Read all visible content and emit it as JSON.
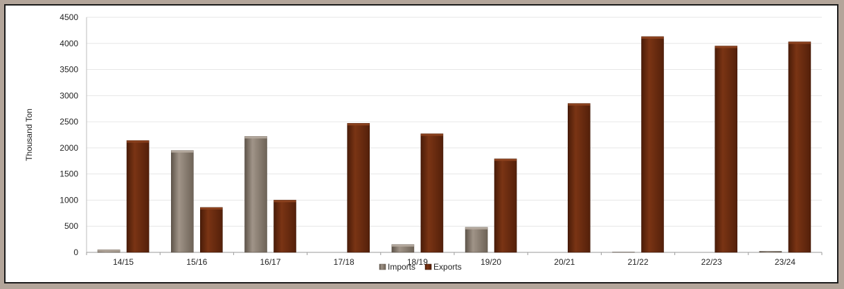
{
  "chart_data": {
    "type": "bar",
    "categories": [
      "14/15",
      "15/16",
      "16/17",
      "17/18",
      "18/19",
      "19/20",
      "20/21",
      "21/22",
      "22/23",
      "23/24"
    ],
    "series": [
      {
        "name": "Imports",
        "values": [
          50,
          1950,
          2220,
          0,
          150,
          480,
          0,
          5,
          0,
          20
        ]
      },
      {
        "name": "Exports",
        "values": [
          2140,
          860,
          1000,
          2470,
          2270,
          1790,
          2850,
          4130,
          3950,
          4030
        ]
      }
    ],
    "ylabel": "Thousand Ton",
    "xlabel": "",
    "ylim": [
      0,
      4500
    ],
    "yticks": [
      0,
      500,
      1000,
      1500,
      2000,
      2500,
      3000,
      3500,
      4000,
      4500
    ],
    "grid": true,
    "legend": "bottom",
    "colors": {
      "Imports": "#847769",
      "Exports": "#6b2a0e",
      "page_background": "#b3a59a",
      "frame_border": "#1a1a1a",
      "grid": "#e6e6e6"
    }
  }
}
